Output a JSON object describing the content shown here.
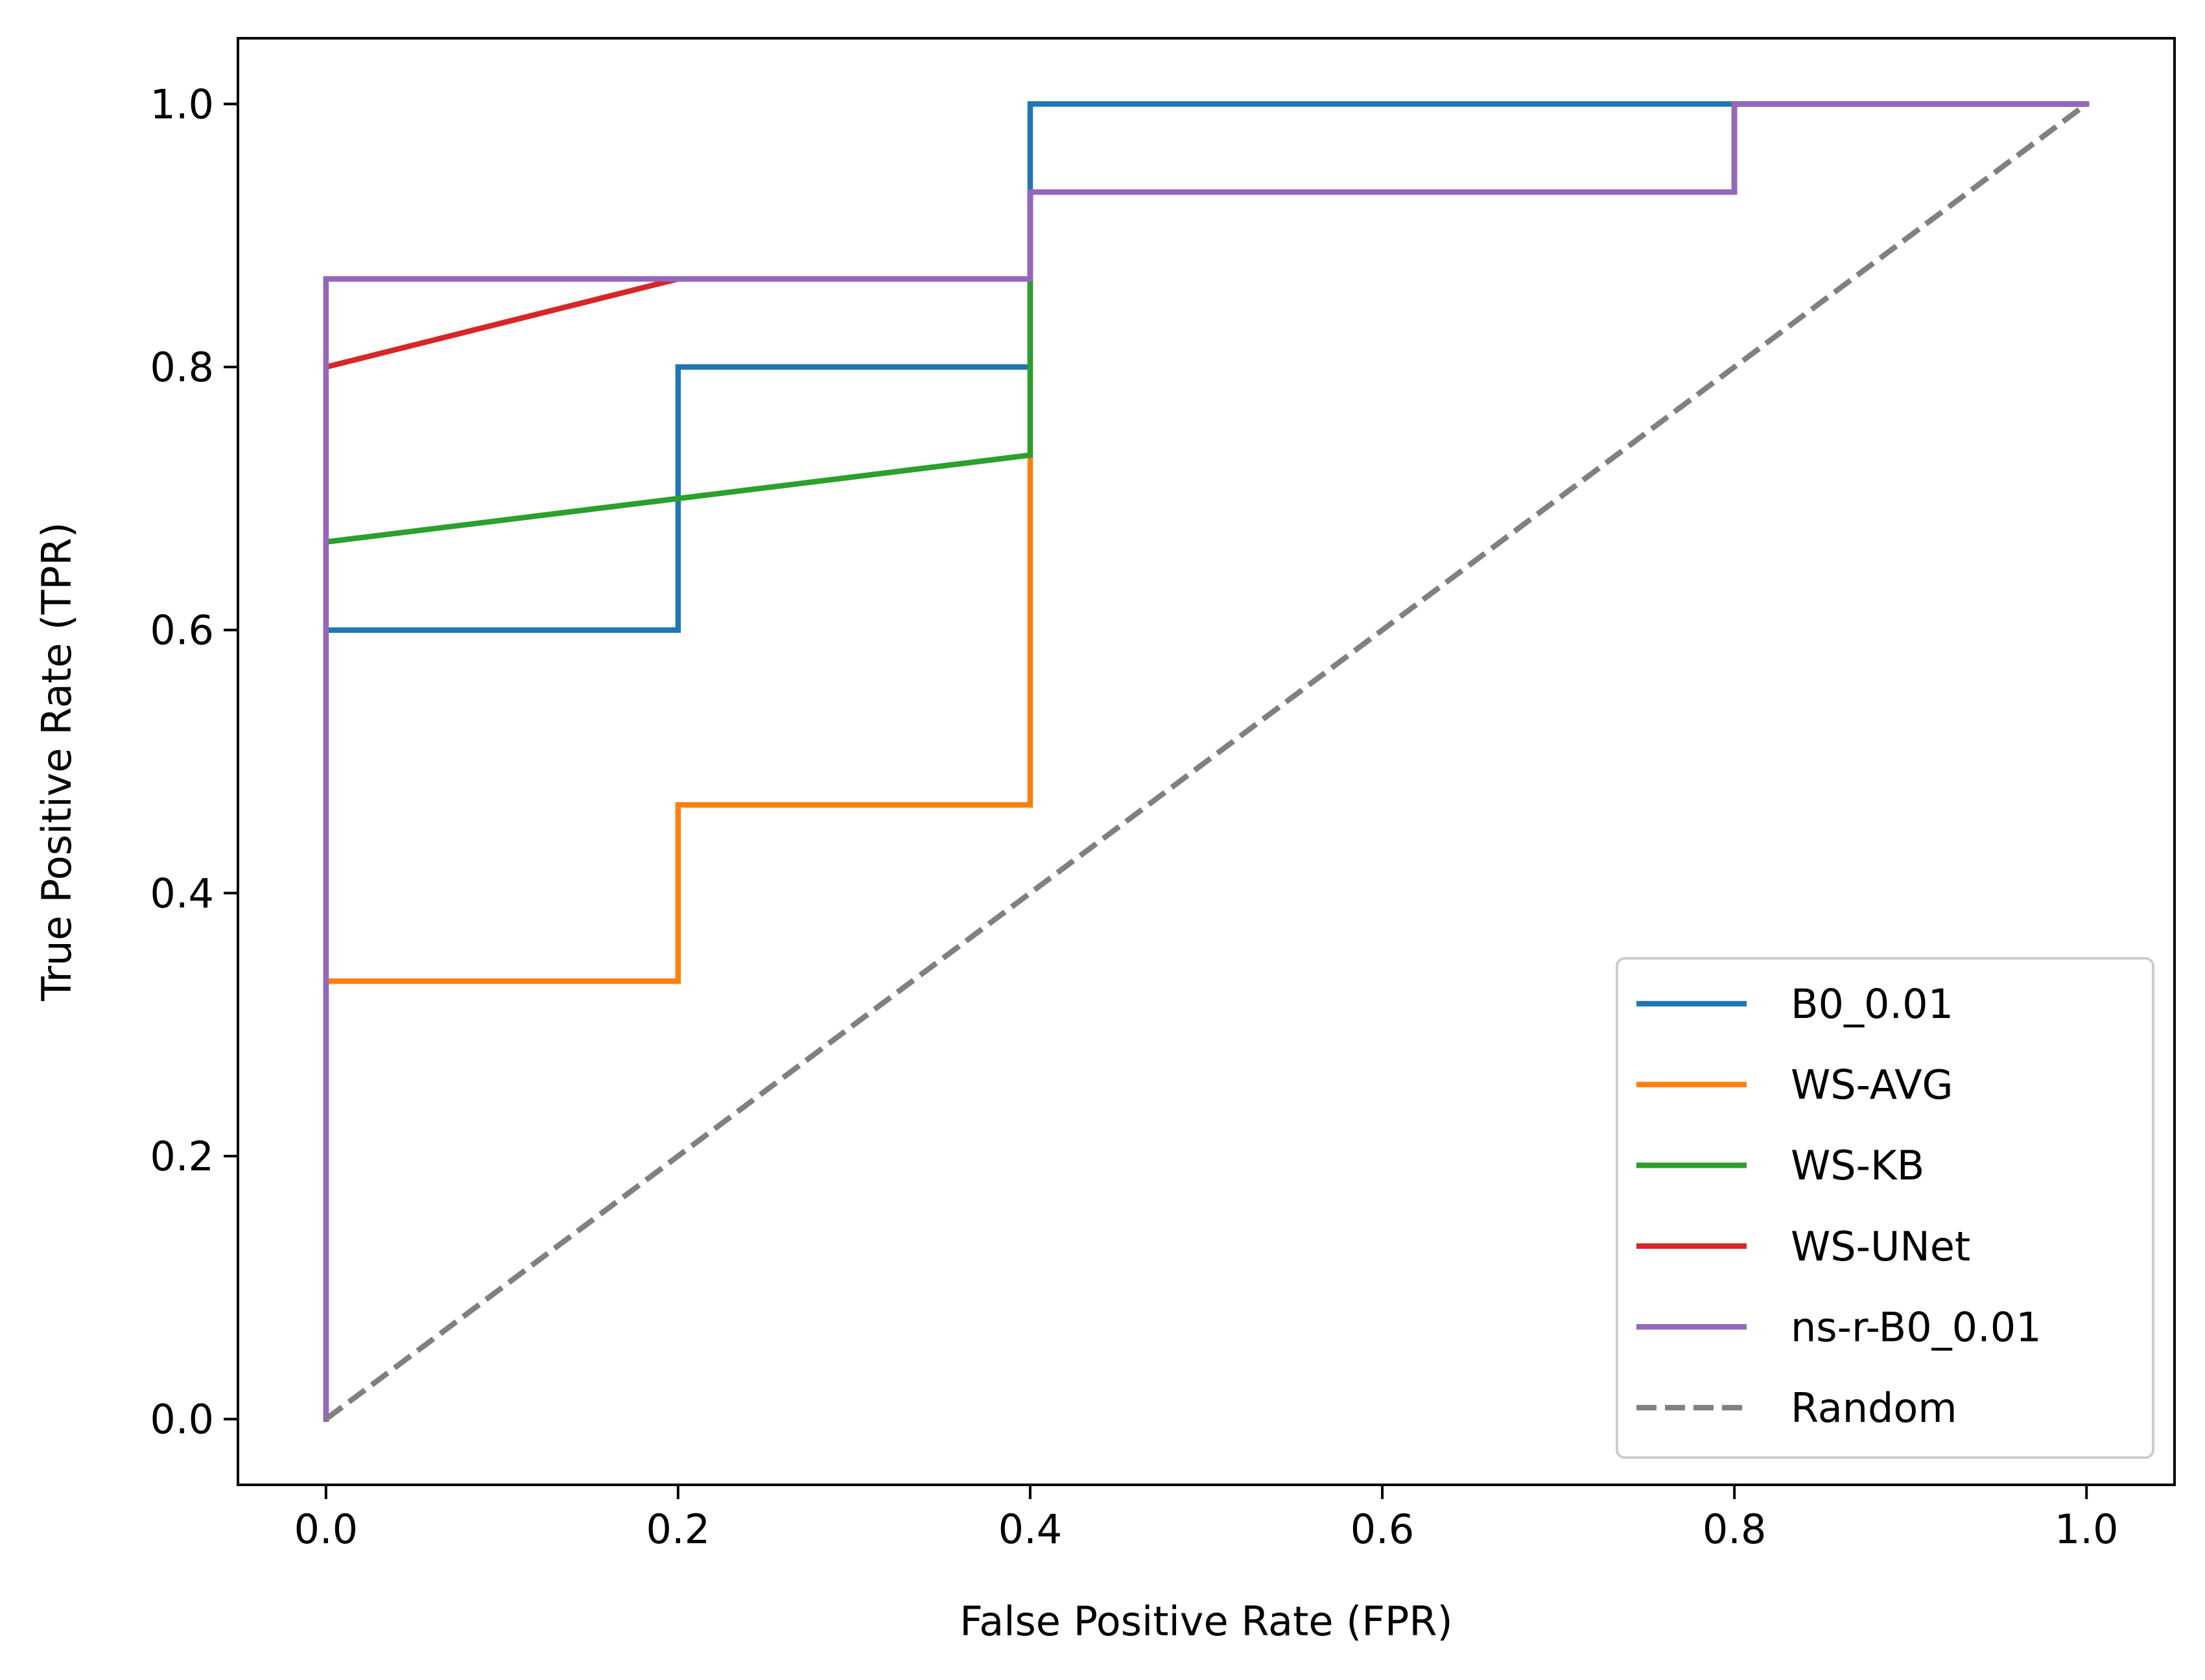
{
  "chart_data": {
    "type": "line",
    "title": "",
    "xlabel": "False Positive Rate (FPR)",
    "ylabel": "True Positive Rate (TPR)",
    "xlim": [
      -0.05,
      1.05
    ],
    "ylim": [
      -0.05,
      1.05
    ],
    "xticks": [
      0.0,
      0.2,
      0.4,
      0.6,
      0.8,
      1.0
    ],
    "yticks": [
      0.0,
      0.2,
      0.4,
      0.6,
      0.8,
      1.0
    ],
    "xtick_labels": [
      "0.0",
      "0.2",
      "0.4",
      "0.6",
      "0.8",
      "1.0"
    ],
    "ytick_labels": [
      "0.0",
      "0.2",
      "0.4",
      "0.6",
      "0.8",
      "1.0"
    ],
    "grid": false,
    "legend_position": "lower-right",
    "series": [
      {
        "name": "B0_0.01",
        "color": "#1f77b4",
        "dashed": false,
        "x": [
          0.0,
          0.0,
          0.0,
          0.2,
          0.2,
          0.4,
          0.4,
          1.0
        ],
        "y": [
          0.0,
          0.067,
          0.6,
          0.6,
          0.8,
          0.8,
          1.0,
          1.0
        ]
      },
      {
        "name": "WS-AVG",
        "color": "#ff7f0e",
        "dashed": false,
        "x": [
          0.0,
          0.0,
          0.0,
          0.2,
          0.2,
          0.4,
          0.4,
          0.4,
          0.4,
          0.8,
          0.8,
          1.0
        ],
        "y": [
          0.0,
          0.067,
          0.333,
          0.333,
          0.467,
          0.467,
          0.733,
          0.867,
          0.933,
          0.933,
          1.0,
          1.0
        ]
      },
      {
        "name": "WS-KB",
        "color": "#2ca02c",
        "dashed": false,
        "x": [
          0.0,
          0.0,
          0.0,
          0.4,
          0.4,
          0.4,
          0.8,
          0.8,
          1.0
        ],
        "y": [
          0.0,
          0.067,
          0.667,
          0.733,
          0.867,
          0.933,
          0.933,
          1.0,
          1.0
        ]
      },
      {
        "name": "WS-UNet",
        "color": "#d62728",
        "dashed": false,
        "x": [
          0.0,
          0.0,
          0.0,
          0.2,
          0.4,
          0.4,
          0.8,
          0.8,
          1.0
        ],
        "y": [
          0.0,
          0.067,
          0.8,
          0.867,
          0.867,
          0.933,
          0.933,
          1.0,
          1.0
        ]
      },
      {
        "name": "ns-r-B0_0.01",
        "color": "#9467bd",
        "dashed": false,
        "x": [
          0.0,
          0.0,
          0.0,
          0.4,
          0.4,
          0.8,
          0.8,
          1.0
        ],
        "y": [
          0.0,
          0.067,
          0.867,
          0.867,
          0.933,
          0.933,
          1.0,
          1.0
        ]
      },
      {
        "name": "Random",
        "color": "#808080",
        "dashed": true,
        "x": [
          0.0,
          1.0
        ],
        "y": [
          0.0,
          1.0
        ]
      }
    ]
  }
}
